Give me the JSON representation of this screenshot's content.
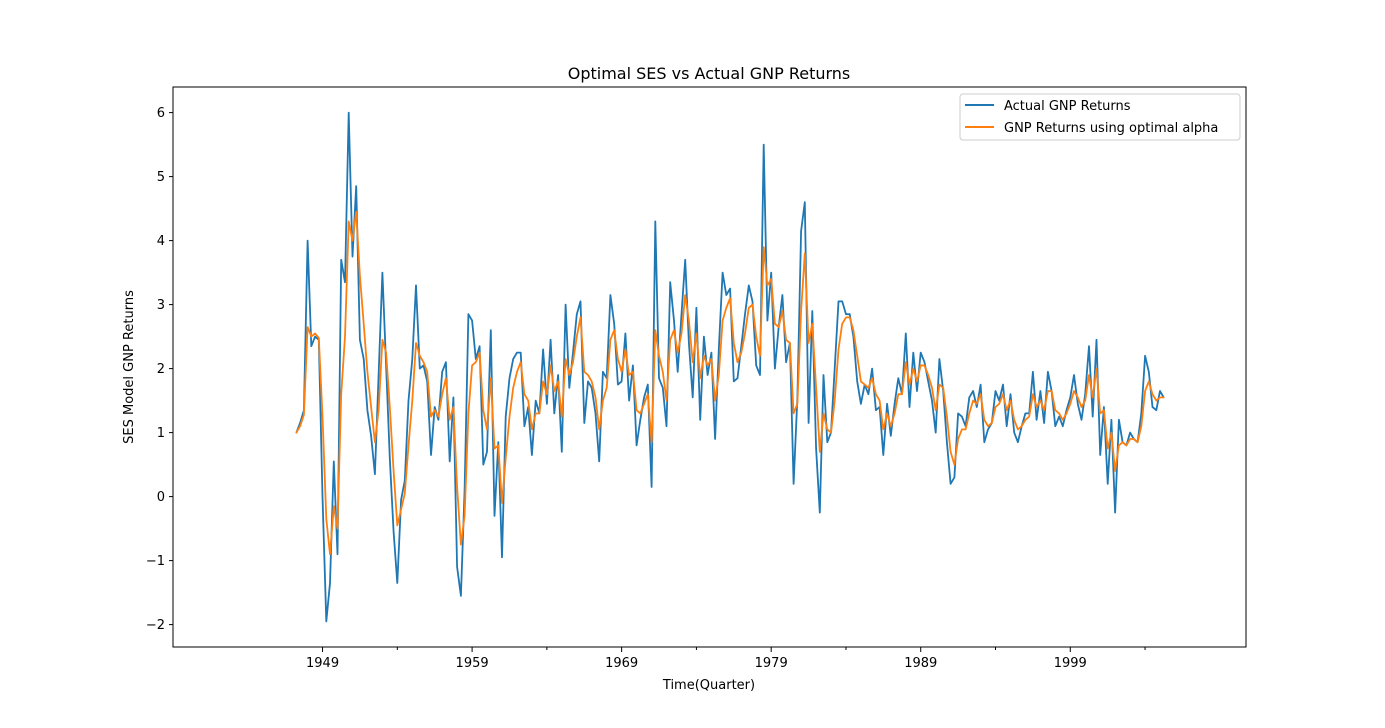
{
  "chart_data": {
    "type": "line",
    "title": "Optimal SES vs Actual GNP Returns",
    "xlabel": "Time(Quarter)",
    "ylabel": "SES Model GNP Returns",
    "xlim": [
      1939.0,
      2010.75
    ],
    "ylim": [
      -2.35,
      6.4
    ],
    "x_start": 1947.25,
    "x_step": 0.25,
    "x_ticks": [
      1949,
      1959,
      1969,
      1979,
      1989,
      1999
    ],
    "x_minor_ticks": [
      1954,
      1964,
      1974,
      1984,
      1994,
      2004
    ],
    "y_ticks": [
      -2,
      -1,
      0,
      1,
      2,
      3,
      4,
      5,
      6
    ],
    "grid": false,
    "legend_position": "upper right",
    "colors": {
      "series1": "#1f77b4",
      "series2": "#ff7f0e"
    },
    "series": [
      {
        "name": "Actual GNP Returns",
        "values": [
          1.0,
          1.15,
          1.35,
          4.0,
          2.35,
          2.5,
          2.45,
          0.0,
          -1.95,
          -1.35,
          0.55,
          -0.9,
          3.7,
          3.35,
          6.0,
          3.75,
          4.85,
          2.45,
          2.15,
          1.35,
          0.95,
          0.35,
          1.9,
          3.5,
          2.05,
          0.6,
          -0.55,
          -1.35,
          -0.05,
          0.25,
          1.5,
          2.15,
          3.3,
          2.0,
          2.05,
          1.8,
          0.65,
          1.4,
          1.2,
          1.95,
          2.1,
          0.55,
          1.55,
          -1.1,
          -1.55,
          0.1,
          2.85,
          2.75,
          2.15,
          2.35,
          0.5,
          0.7,
          2.6,
          -0.3,
          0.85,
          -0.95,
          1.25,
          1.85,
          2.15,
          2.25,
          2.25,
          1.1,
          1.4,
          0.65,
          1.5,
          1.3,
          2.3,
          1.45,
          2.45,
          1.3,
          1.9,
          0.7,
          3.0,
          1.7,
          2.25,
          2.85,
          3.05,
          1.15,
          1.8,
          1.7,
          1.3,
          0.55,
          1.95,
          1.85,
          3.15,
          2.7,
          1.75,
          1.8,
          2.55,
          1.5,
          2.05,
          0.8,
          1.2,
          1.55,
          1.75,
          0.15,
          4.3,
          1.85,
          1.7,
          1.1,
          3.35,
          2.75,
          1.95,
          2.85,
          3.7,
          2.4,
          1.55,
          2.95,
          1.2,
          2.5,
          1.9,
          2.25,
          0.9,
          2.3,
          3.5,
          3.15,
          3.25,
          1.8,
          1.85,
          2.35,
          2.85,
          3.3,
          3.05,
          2.05,
          1.9,
          5.5,
          2.75,
          3.5,
          2.0,
          2.65,
          3.15,
          2.1,
          2.4,
          0.2,
          1.55,
          4.15,
          4.6,
          1.15,
          2.9,
          0.75,
          -0.25,
          1.9,
          0.85,
          1.0,
          2.0,
          3.05,
          3.05,
          2.85,
          2.85,
          2.5,
          1.8,
          1.45,
          1.75,
          1.6,
          2.0,
          1.35,
          1.4,
          0.65,
          1.45,
          0.95,
          1.45,
          1.85,
          1.6,
          2.55,
          1.4,
          2.25,
          1.65,
          2.25,
          2.1,
          1.8,
          1.5,
          1.0,
          2.15,
          1.65,
          0.85,
          0.2,
          0.3,
          1.3,
          1.25,
          1.1,
          1.55,
          1.65,
          1.4,
          1.75,
          0.85,
          1.05,
          1.15,
          1.65,
          1.5,
          1.75,
          1.1,
          1.6,
          1.0,
          0.85,
          1.1,
          1.3,
          1.3,
          1.95,
          1.2,
          1.65,
          1.15,
          1.95,
          1.65,
          1.1,
          1.25,
          1.1,
          1.35,
          1.55,
          1.9,
          1.45,
          1.2,
          1.6,
          2.35,
          1.25,
          2.45,
          0.65,
          1.4,
          0.2,
          1.2,
          -0.25,
          1.2,
          0.85,
          0.8,
          1.0,
          0.9,
          0.85,
          1.3,
          2.2,
          1.95,
          1.4,
          1.35,
          1.65,
          1.55
        ]
      },
      {
        "name": "GNP Returns using optimal alpha",
        "values": [
          1.0,
          1.1,
          1.28,
          2.65,
          2.5,
          2.55,
          2.48,
          1.25,
          -0.35,
          -0.9,
          -0.15,
          -0.5,
          1.6,
          2.5,
          4.3,
          4.0,
          4.45,
          3.45,
          2.7,
          1.95,
          1.4,
          0.85,
          1.35,
          2.45,
          2.25,
          1.4,
          0.4,
          -0.45,
          -0.2,
          0.05,
          0.8,
          1.5,
          2.4,
          2.2,
          2.1,
          1.95,
          1.25,
          1.35,
          1.25,
          1.6,
          1.85,
          1.2,
          1.4,
          0.15,
          -0.75,
          -0.3,
          1.3,
          2.05,
          2.1,
          2.25,
          1.35,
          1.05,
          1.85,
          0.75,
          0.8,
          -0.1,
          0.6,
          1.25,
          1.7,
          1.95,
          2.1,
          1.6,
          1.5,
          1.05,
          1.3,
          1.3,
          1.8,
          1.6,
          2.05,
          1.65,
          1.8,
          1.25,
          2.15,
          1.9,
          2.1,
          2.5,
          2.8,
          1.95,
          1.9,
          1.8,
          1.55,
          1.05,
          1.5,
          1.7,
          2.45,
          2.6,
          2.15,
          1.95,
          2.3,
          1.9,
          1.95,
          1.35,
          1.3,
          1.45,
          1.6,
          0.85,
          2.6,
          2.2,
          1.95,
          1.5,
          2.45,
          2.6,
          2.25,
          2.55,
          3.15,
          2.75,
          2.1,
          2.55,
          1.85,
          2.2,
          2.05,
          2.15,
          1.5,
          1.9,
          2.75,
          2.95,
          3.1,
          2.4,
          2.1,
          2.25,
          2.55,
          2.95,
          3.0,
          2.5,
          2.2,
          3.9,
          3.3,
          3.4,
          2.7,
          2.65,
          2.9,
          2.45,
          2.4,
          1.3,
          1.45,
          2.9,
          3.8,
          2.4,
          2.7,
          1.7,
          0.7,
          1.3,
          1.05,
          1.0,
          1.5,
          2.3,
          2.7,
          2.8,
          2.8,
          2.6,
          2.2,
          1.8,
          1.75,
          1.7,
          1.85,
          1.6,
          1.5,
          1.05,
          1.3,
          1.1,
          1.3,
          1.6,
          1.6,
          2.1,
          1.75,
          2.0,
          1.8,
          2.05,
          2.05,
          1.9,
          1.7,
          1.35,
          1.75,
          1.7,
          1.25,
          0.7,
          0.5,
          0.9,
          1.05,
          1.05,
          1.3,
          1.5,
          1.45,
          1.6,
          1.2,
          1.1,
          1.15,
          1.4,
          1.45,
          1.6,
          1.35,
          1.5,
          1.2,
          1.05,
          1.1,
          1.2,
          1.25,
          1.6,
          1.4,
          1.5,
          1.35,
          1.65,
          1.65,
          1.35,
          1.3,
          1.2,
          1.3,
          1.45,
          1.65,
          1.55,
          1.4,
          1.5,
          1.9,
          1.55,
          2.0,
          1.3,
          1.35,
          0.75,
          1.0,
          0.4,
          0.8,
          0.85,
          0.8,
          0.9,
          0.9,
          0.85,
          1.1,
          1.65,
          1.8,
          1.6,
          1.5,
          1.55,
          1.55
        ]
      }
    ]
  }
}
